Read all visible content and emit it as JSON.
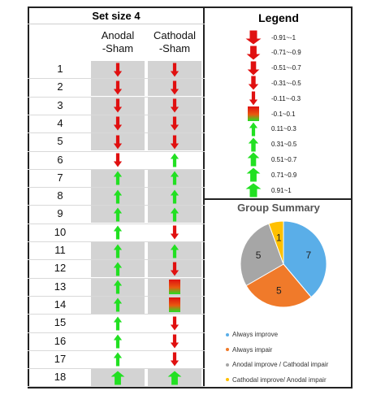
{
  "chart_data": [
    {
      "type": "table",
      "title": "Set size 4",
      "columns": [
        "Anodal\n-Sham",
        "Cathodal\n-Sham"
      ],
      "rows": [
        "1",
        "2",
        "3",
        "4",
        "5",
        "6",
        "7",
        "8",
        "9",
        "10",
        "11",
        "12",
        "13",
        "14",
        "15",
        "16",
        "17",
        "18"
      ],
      "cells": [
        [
          "down",
          "down"
        ],
        [
          "down",
          "down"
        ],
        [
          "down",
          "down"
        ],
        [
          "down",
          "down"
        ],
        [
          "down",
          "down"
        ],
        [
          "down",
          "up"
        ],
        [
          "up",
          "up"
        ],
        [
          "up",
          "up"
        ],
        [
          "up",
          "up"
        ],
        [
          "up",
          "down"
        ],
        [
          "up",
          "up"
        ],
        [
          "up",
          "down"
        ],
        [
          "up",
          "neutral"
        ],
        [
          "up",
          "neutral"
        ],
        [
          "up",
          "down"
        ],
        [
          "up",
          "down"
        ],
        [
          "up",
          "down"
        ],
        [
          "up",
          "up"
        ]
      ],
      "shaded_rows": [
        "1",
        "2",
        "3",
        "4",
        "5",
        "7",
        "8",
        "9",
        "11",
        "12",
        "13",
        "14",
        "18"
      ]
    },
    {
      "type": "pie",
      "title": "Group Summary",
      "categories": [
        "Always improve",
        "Always impair",
        "Anodal improve / Cathodal impair",
        "Cathodal improve/ Anodal impair"
      ],
      "values": [
        7,
        5,
        5,
        1
      ],
      "colors": [
        "#5aaee8",
        "#f07a2a",
        "#a6a6a6",
        "#ffc000"
      ]
    }
  ],
  "legend": {
    "title": "Legend",
    "items": [
      {
        "label": "-0.91~-1",
        "kind": "down",
        "level": 5
      },
      {
        "label": "-0.71~-0.9",
        "kind": "down",
        "level": 4
      },
      {
        "label": "-0.51~-0.7",
        "kind": "down",
        "level": 3
      },
      {
        "label": "-0.31~-0.5",
        "kind": "down",
        "level": 2
      },
      {
        "label": "-0.11~-0.3",
        "kind": "down",
        "level": 1
      },
      {
        "label": "-0.1~0.1",
        "kind": "neutral",
        "level": 1
      },
      {
        "label": "0.11~0.3",
        "kind": "up",
        "level": 1
      },
      {
        "label": "0.31~0.5",
        "kind": "up",
        "level": 2
      },
      {
        "label": "0.51~0.7",
        "kind": "up",
        "level": 3
      },
      {
        "label": "0.71~0.9",
        "kind": "up",
        "level": 4
      },
      {
        "label": "0.91~1",
        "kind": "up",
        "level": 5
      }
    ]
  },
  "colors": {
    "down": "#e01010",
    "up": "#22e022",
    "shade": "#d3d3d3"
  }
}
